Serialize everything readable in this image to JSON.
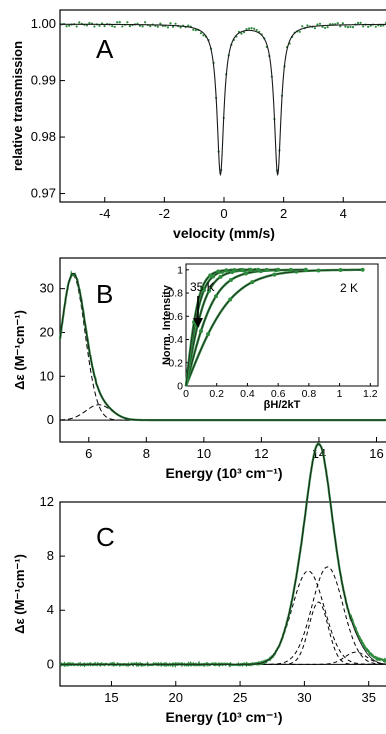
{
  "colors": {
    "green": "#2e8b3e",
    "black": "#000000",
    "fit": "#1a1a1a"
  },
  "chart_data": [
    {
      "panel": "A",
      "type": "line",
      "xlabel": "velocity (mm/s)",
      "ylabel": "relative transmission",
      "xlim": [
        -5.5,
        5.5
      ],
      "ylim": [
        0.9685,
        1.0025
      ],
      "xticks": [
        -4,
        -2,
        0,
        2,
        4
      ],
      "yticks": [
        0.97,
        0.98,
        0.99,
        1.0
      ],
      "ytick_labels": [
        "0.97",
        "0.98",
        "0.99",
        "1.00"
      ],
      "doublet": {
        "centers": [
          -0.12,
          1.8
        ],
        "depth": 0.0265,
        "fwhm": 0.28
      },
      "data_points_style": "green dots with noise",
      "fit_style": "black solid"
    },
    {
      "panel": "B",
      "type": "line",
      "xlabel": "Energy (10³ cm⁻¹)",
      "ylabel": "Δε (M⁻¹cm⁻¹)",
      "xlim": [
        5.0,
        16.4
      ],
      "ylim": [
        -5,
        37
      ],
      "xticks": [
        6,
        8,
        10,
        12,
        14,
        16
      ],
      "yticks": [
        0,
        10,
        20,
        30
      ],
      "bands": [
        {
          "center": 5.45,
          "width": 0.42,
          "height": 33
        },
        {
          "center": 6.35,
          "width": 0.45,
          "height": 3.5
        }
      ],
      "inset": {
        "xlabel": "βH/2kT",
        "ylabel": "Norm. Intensity",
        "xlim": [
          0,
          1.25
        ],
        "ylim": [
          0,
          1.05
        ],
        "xticks": [
          0,
          0.2,
          0.4,
          0.6,
          0.8,
          1.0,
          1.2
        ],
        "xtick_labels": [
          "0",
          "0.2",
          "0.4",
          "0.6",
          "0.8",
          "1",
          "1.2"
        ],
        "yticks": [
          0,
          0.2,
          0.4,
          0.6,
          0.8,
          1.0
        ],
        "ytick_labels": [
          "0",
          "0.2",
          "0.4",
          "0.6",
          "0.8",
          "1"
        ],
        "series": [
          {
            "xmax": 1.15,
            "k": 0.3
          },
          {
            "xmax": 0.78,
            "k": 0.19
          },
          {
            "xmax": 0.6,
            "k": 0.13
          },
          {
            "xmax": 0.47,
            "k": 0.1
          },
          {
            "xmax": 0.42,
            "k": 0.085
          }
        ],
        "label_high": "35 K",
        "label_low": "2 K"
      }
    },
    {
      "panel": "C",
      "type": "line",
      "xlabel": "Energy (10³ cm⁻¹)",
      "ylabel": "Δε (M⁻¹cm⁻¹)",
      "xlim": [
        11,
        36.5
      ],
      "ylim": [
        -1.6,
        12
      ],
      "xticks": [
        15,
        20,
        25,
        30,
        35
      ],
      "yticks": [
        0,
        4,
        8,
        12
      ],
      "bands": [
        {
          "center": 30.3,
          "width": 1.25,
          "height": 6.9
        },
        {
          "center": 31.1,
          "width": 0.75,
          "height": 4.6
        },
        {
          "center": 31.8,
          "width": 1.2,
          "height": 7.2
        },
        {
          "center": 34.0,
          "width": 0.85,
          "height": 0.9
        }
      ]
    }
  ]
}
